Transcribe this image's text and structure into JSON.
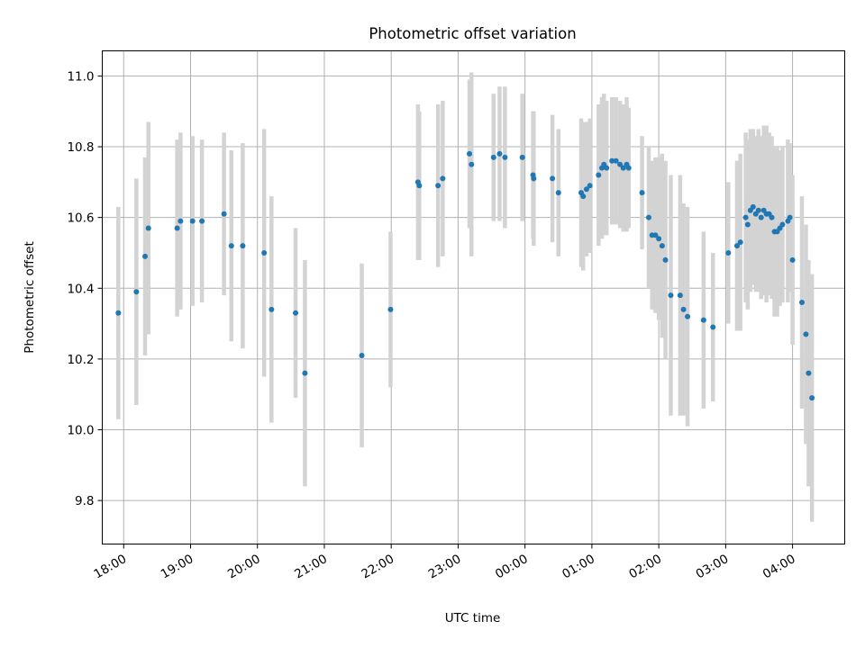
{
  "chart_data": {
    "type": "scatter",
    "title": "Photometric offset variation",
    "xlabel": "UTC time",
    "ylabel": "Photometric offset",
    "x_unit": "UTC time (hours, day 2 continues past 24)",
    "x_range": [
      17.68,
      28.78
    ],
    "y_range": [
      9.677,
      11.071
    ],
    "grid": true,
    "xticks": [
      {
        "value": 18,
        "label": "18:00"
      },
      {
        "value": 19,
        "label": "19:00"
      },
      {
        "value": 20,
        "label": "20:00"
      },
      {
        "value": 21,
        "label": "21:00"
      },
      {
        "value": 22,
        "label": "22:00"
      },
      {
        "value": 23,
        "label": "23:00"
      },
      {
        "value": 24,
        "label": "00:00"
      },
      {
        "value": 25,
        "label": "01:00"
      },
      {
        "value": 26,
        "label": "02:00"
      },
      {
        "value": 27,
        "label": "03:00"
      },
      {
        "value": 28,
        "label": "04:00"
      }
    ],
    "yticks": [
      {
        "value": 9.8,
        "label": "9.8"
      },
      {
        "value": 10.0,
        "label": "10.0"
      },
      {
        "value": 10.2,
        "label": "10.2"
      },
      {
        "value": 10.4,
        "label": "10.4"
      },
      {
        "value": 10.6,
        "label": "10.6"
      },
      {
        "value": 10.8,
        "label": "10.8"
      },
      {
        "value": 11.0,
        "label": "11.0"
      }
    ],
    "colors": {
      "point": "#1f77b4",
      "errorbar": "#d3d3d3",
      "grid": "#b0b0b0",
      "frame": "#000000"
    },
    "points": [
      [
        17.92,
        10.33,
        0.3
      ],
      [
        18.19,
        10.39,
        0.32
      ],
      [
        18.32,
        10.49,
        0.28
      ],
      [
        18.37,
        10.57,
        0.3
      ],
      [
        18.8,
        10.57,
        0.25
      ],
      [
        18.85,
        10.59,
        0.25
      ],
      [
        19.03,
        10.59,
        0.24
      ],
      [
        19.17,
        10.59,
        0.23
      ],
      [
        19.5,
        10.61,
        0.23
      ],
      [
        19.61,
        10.52,
        0.27
      ],
      [
        19.78,
        10.52,
        0.29
      ],
      [
        20.1,
        10.5,
        0.35
      ],
      [
        20.21,
        10.34,
        0.32
      ],
      [
        20.57,
        10.33,
        0.24
      ],
      [
        20.71,
        10.16,
        0.32
      ],
      [
        21.56,
        10.21,
        0.26
      ],
      [
        21.99,
        10.34,
        0.22
      ],
      [
        22.4,
        10.7,
        0.22
      ],
      [
        22.42,
        10.69,
        0.21
      ],
      [
        22.7,
        10.69,
        0.23
      ],
      [
        22.77,
        10.71,
        0.22
      ],
      [
        23.17,
        10.78,
        0.21
      ],
      [
        23.2,
        10.75,
        0.26
      ],
      [
        23.53,
        10.77,
        0.18
      ],
      [
        23.62,
        10.78,
        0.19
      ],
      [
        23.7,
        10.77,
        0.2
      ],
      [
        23.96,
        10.77,
        0.18
      ],
      [
        24.12,
        10.72,
        0.18
      ],
      [
        24.13,
        10.71,
        0.19
      ],
      [
        24.41,
        10.71,
        0.18
      ],
      [
        24.5,
        10.67,
        0.18
      ],
      [
        24.84,
        10.67,
        0.21
      ],
      [
        24.87,
        10.66,
        0.21
      ],
      [
        24.92,
        10.68,
        0.19
      ],
      [
        24.97,
        10.69,
        0.19
      ],
      [
        25.1,
        10.72,
        0.2
      ],
      [
        25.15,
        10.74,
        0.2
      ],
      [
        25.18,
        10.75,
        0.2
      ],
      [
        25.22,
        10.74,
        0.19
      ],
      [
        25.3,
        10.76,
        0.18
      ],
      [
        25.36,
        10.76,
        0.18
      ],
      [
        25.42,
        10.75,
        0.18
      ],
      [
        25.47,
        10.74,
        0.18
      ],
      [
        25.52,
        10.75,
        0.19
      ],
      [
        25.55,
        10.74,
        0.17
      ],
      [
        25.75,
        10.67,
        0.16
      ],
      [
        25.85,
        10.6,
        0.2
      ],
      [
        25.9,
        10.55,
        0.21
      ],
      [
        25.95,
        10.55,
        0.22
      ],
      [
        26.0,
        10.54,
        0.23
      ],
      [
        26.05,
        10.52,
        0.26
      ],
      [
        26.1,
        10.48,
        0.28
      ],
      [
        26.18,
        10.38,
        0.34
      ],
      [
        26.32,
        10.38,
        0.34
      ],
      [
        26.37,
        10.34,
        0.3
      ],
      [
        26.43,
        10.32,
        0.31
      ],
      [
        26.67,
        10.31,
        0.25
      ],
      [
        26.81,
        10.29,
        0.21
      ],
      [
        27.04,
        10.5,
        0.2
      ],
      [
        27.17,
        10.52,
        0.24
      ],
      [
        27.22,
        10.53,
        0.25
      ],
      [
        27.3,
        10.6,
        0.24
      ],
      [
        27.33,
        10.58,
        0.24
      ],
      [
        27.37,
        10.62,
        0.23
      ],
      [
        27.41,
        10.63,
        0.22
      ],
      [
        27.45,
        10.61,
        0.22
      ],
      [
        27.49,
        10.62,
        0.23
      ],
      [
        27.53,
        10.6,
        0.23
      ],
      [
        27.57,
        10.62,
        0.24
      ],
      [
        27.61,
        10.61,
        0.25
      ],
      [
        27.65,
        10.61,
        0.23
      ],
      [
        27.69,
        10.6,
        0.23
      ],
      [
        27.73,
        10.56,
        0.24
      ],
      [
        27.77,
        10.56,
        0.24
      ],
      [
        27.81,
        10.57,
        0.22
      ],
      [
        27.85,
        10.58,
        0.22
      ],
      [
        27.93,
        10.59,
        0.23
      ],
      [
        27.96,
        10.6,
        0.21
      ],
      [
        28.0,
        10.48,
        0.24
      ],
      [
        28.14,
        10.36,
        0.3
      ],
      [
        28.2,
        10.27,
        0.31
      ],
      [
        28.24,
        10.16,
        0.32
      ],
      [
        28.29,
        10.09,
        0.35
      ]
    ]
  }
}
